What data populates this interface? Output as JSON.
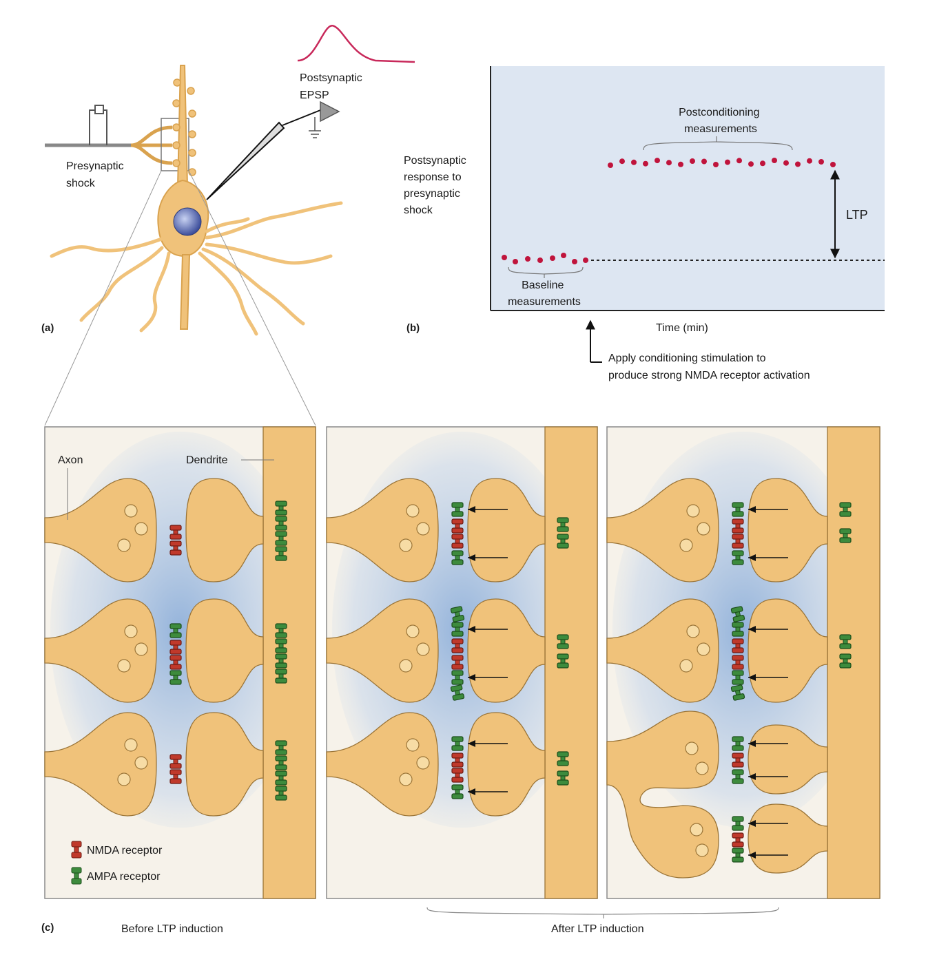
{
  "panel_a": {
    "letter": "(a)",
    "presynaptic_label": [
      "Presynaptic",
      "shock"
    ],
    "epsp_label": [
      "Postsynaptic",
      "EPSP"
    ]
  },
  "panel_b": {
    "letter": "(b)",
    "ylabel": [
      "Postsynaptic",
      "response to",
      "presynaptic",
      "shock"
    ],
    "xlabel": "Time (min)",
    "postconditioning_label": [
      "Postconditioning",
      "measurements"
    ],
    "baseline_label": [
      "Baseline",
      "measurements"
    ],
    "ltp_label": "LTP",
    "conditioning_note": [
      "Apply conditioning stimulation to",
      "produce strong NMDA receptor activation"
    ],
    "colors": {
      "plot_bg": "#dde6f2",
      "dot": "#c0143c",
      "epsp_trace": "#c8285a"
    }
  },
  "panel_c": {
    "letter": "(c)",
    "axon_label": "Axon",
    "dendrite_label": "Dendrite",
    "legend": [
      {
        "label": "NMDA receptor",
        "color": "#c0392b"
      },
      {
        "label": "AMPA receptor",
        "color": "#3d8b3d"
      }
    ],
    "before_caption": "Before LTP induction",
    "after_caption": "After LTP induction",
    "colors": {
      "cell": "#f0c27a",
      "cell_edge": "#9a7437",
      "cleft": "#9cb7dc"
    }
  }
}
